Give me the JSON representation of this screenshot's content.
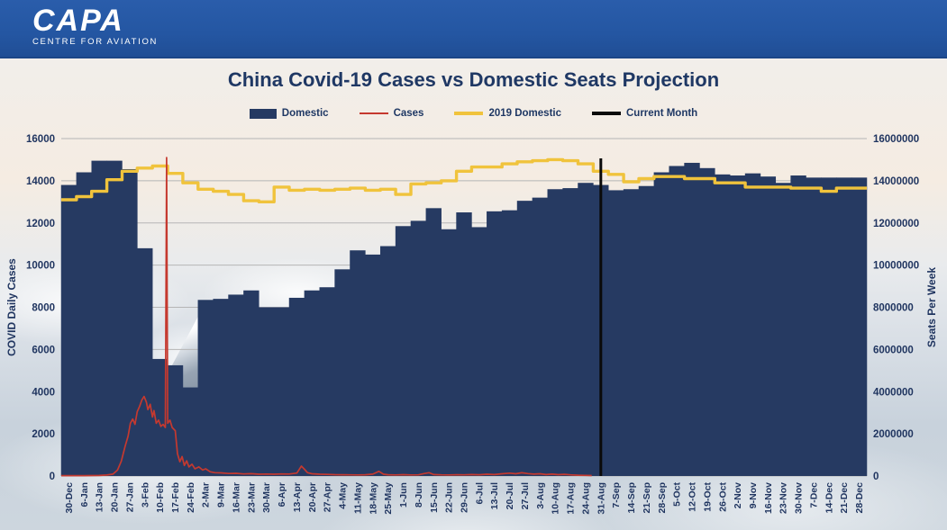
{
  "banner": {
    "logo_title": "CAPA",
    "logo_subtitle": "CENTRE FOR AVIATION"
  },
  "title": "China Covid-19 Cases vs Domestic Seats Projection",
  "legend": {
    "items": [
      {
        "label": "Domestic",
        "swatch": "bar",
        "color": "#263a62"
      },
      {
        "label": "Cases",
        "swatch": "thin-line",
        "color": "#c5392f"
      },
      {
        "label": "2019 Domestic",
        "swatch": "thick-line",
        "color": "#f0c33c"
      },
      {
        "label": "Current Month",
        "swatch": "thick-line",
        "color": "#0a0a0a"
      }
    ]
  },
  "axes": {
    "left": {
      "title": "COVID Daily Cases",
      "ticks": [
        "0",
        "2000",
        "4000",
        "6000",
        "8000",
        "10000",
        "12000",
        "14000",
        "16000"
      ]
    },
    "right": {
      "title": "Seats Per Week",
      "ticks": [
        "0",
        "2000000",
        "4000000",
        "6000000",
        "8000000",
        "10000000",
        "12000000",
        "14000000",
        "16000000"
      ]
    }
  },
  "colors": {
    "banner_blue": "#2456a2",
    "title_navy": "#1f3864",
    "gridline": "#b5b5b5"
  },
  "chart_data": {
    "type": "bar",
    "title": "China Covid-19 Cases vs Domestic Seats Projection",
    "left_axis": {
      "label": "COVID Daily Cases",
      "range": [
        0,
        16000
      ],
      "tick_step": 2000,
      "grid": true
    },
    "right_axis": {
      "label": "Seats Per Week",
      "range": [
        0,
        16000000
      ],
      "tick_step": 2000000
    },
    "x_labels": [
      "30-Dec",
      "6-Jan",
      "13-Jan",
      "20-Jan",
      "27-Jan",
      "3-Feb",
      "10-Feb",
      "17-Feb",
      "24-Feb",
      "2-Mar",
      "9-Mar",
      "16-Mar",
      "23-Mar",
      "30-Mar",
      "6-Apr",
      "13-Apr",
      "20-Apr",
      "27-Apr",
      "4-May",
      "11-May",
      "18-May",
      "25-May",
      "1-Jun",
      "8-Jun",
      "15-Jun",
      "22-Jun",
      "29-Jun",
      "6-Jul",
      "13-Jul",
      "20-Jul",
      "27-Jul",
      "3-Aug",
      "10-Aug",
      "17-Aug",
      "24-Aug",
      "31-Aug",
      "7-Sep",
      "14-Sep",
      "21-Sep",
      "28-Sep",
      "5-Oct",
      "12-Oct",
      "19-Oct",
      "26-Oct",
      "2-Nov",
      "9-Nov",
      "16-Nov",
      "23-Nov",
      "30-Nov",
      "7-Dec",
      "14-Dec",
      "21-Dec",
      "28-Dec"
    ],
    "series": [
      {
        "name": "Domestic",
        "type": "bar",
        "axis": "right",
        "color": "#263a62",
        "values": [
          13800000,
          14400000,
          14950000,
          14950000,
          14550000,
          10800000,
          5550000,
          5250000,
          4200000,
          8350000,
          8400000,
          8600000,
          8800000,
          8000000,
          8000000,
          8450000,
          8800000,
          8950000,
          9800000,
          10700000,
          10500000,
          10900000,
          11850000,
          12100000,
          12700000,
          11700000,
          12500000,
          11800000,
          12550000,
          12600000,
          13050000,
          13200000,
          13600000,
          13650000,
          13900000,
          13800000,
          13550000,
          13600000,
          13750000,
          14400000,
          14700000,
          14850000,
          14600000,
          14300000,
          14250000,
          14350000,
          14200000,
          13900000,
          14250000,
          14150000,
          14150000,
          14150000,
          14150000
        ]
      },
      {
        "name": "Cases",
        "type": "line",
        "axis": "left",
        "color": "#c5392f",
        "points": [
          [
            -0.5,
            15
          ],
          [
            0,
            15
          ],
          [
            1,
            18
          ],
          [
            2,
            25
          ],
          [
            2.5,
            45
          ],
          [
            2.9,
            90
          ],
          [
            3.2,
            280
          ],
          [
            3.45,
            700
          ],
          [
            3.7,
            1400
          ],
          [
            3.9,
            1900
          ],
          [
            4.05,
            2500
          ],
          [
            4.2,
            2700
          ],
          [
            4.35,
            2450
          ],
          [
            4.5,
            3050
          ],
          [
            4.65,
            3300
          ],
          [
            4.8,
            3600
          ],
          [
            4.95,
            3770
          ],
          [
            5.1,
            3500
          ],
          [
            5.2,
            3150
          ],
          [
            5.35,
            3400
          ],
          [
            5.5,
            2800
          ],
          [
            5.6,
            3100
          ],
          [
            5.75,
            2500
          ],
          [
            5.9,
            2650
          ],
          [
            6.05,
            2350
          ],
          [
            6.2,
            2450
          ],
          [
            6.35,
            2300
          ],
          [
            6.43,
            15100
          ],
          [
            6.5,
            2500
          ],
          [
            6.65,
            2650
          ],
          [
            6.8,
            2300
          ],
          [
            7.0,
            2150
          ],
          [
            7.15,
            1050
          ],
          [
            7.3,
            680
          ],
          [
            7.45,
            920
          ],
          [
            7.6,
            500
          ],
          [
            7.75,
            720
          ],
          [
            7.9,
            430
          ],
          [
            8.1,
            560
          ],
          [
            8.3,
            340
          ],
          [
            8.55,
            430
          ],
          [
            8.8,
            280
          ],
          [
            9.0,
            340
          ],
          [
            9.3,
            200
          ],
          [
            9.6,
            160
          ],
          [
            10,
            150
          ],
          [
            10.5,
            120
          ],
          [
            11,
            130
          ],
          [
            11.5,
            100
          ],
          [
            12,
            110
          ],
          [
            12.5,
            85
          ],
          [
            13,
            95
          ],
          [
            13.5,
            85
          ],
          [
            14,
            100
          ],
          [
            14.5,
            95
          ],
          [
            15,
            140
          ],
          [
            15.3,
            470
          ],
          [
            15.5,
            320
          ],
          [
            15.7,
            160
          ],
          [
            16,
            105
          ],
          [
            16.5,
            85
          ],
          [
            17,
            75
          ],
          [
            17.5,
            65
          ],
          [
            18,
            60
          ],
          [
            18.5,
            55
          ],
          [
            19,
            50
          ],
          [
            19.5,
            60
          ],
          [
            20,
            90
          ],
          [
            20.4,
            220
          ],
          [
            20.7,
            85
          ],
          [
            21,
            60
          ],
          [
            21.5,
            50
          ],
          [
            22,
            65
          ],
          [
            22.5,
            50
          ],
          [
            23,
            55
          ],
          [
            23.4,
            120
          ],
          [
            23.7,
            160
          ],
          [
            24,
            70
          ],
          [
            24.5,
            55
          ],
          [
            25,
            50
          ],
          [
            25.5,
            60
          ],
          [
            26,
            55
          ],
          [
            26.5,
            70
          ],
          [
            27,
            60
          ],
          [
            27.5,
            85
          ],
          [
            28,
            70
          ],
          [
            28.5,
            105
          ],
          [
            29,
            135
          ],
          [
            29.4,
            105
          ],
          [
            29.8,
            155
          ],
          [
            30.2,
            115
          ],
          [
            30.6,
            90
          ],
          [
            31,
            105
          ],
          [
            31.4,
            70
          ],
          [
            31.8,
            90
          ],
          [
            32.2,
            65
          ],
          [
            32.6,
            80
          ],
          [
            33,
            55
          ],
          [
            33.5,
            40
          ],
          [
            34,
            30
          ],
          [
            34.4,
            20
          ]
        ]
      },
      {
        "name": "2019 Domestic",
        "type": "step-line",
        "axis": "right",
        "color": "#f0c33c",
        "values": [
          13100000,
          13250000,
          13500000,
          14050000,
          14450000,
          14600000,
          14700000,
          14350000,
          13900000,
          13600000,
          13500000,
          13350000,
          13050000,
          13000000,
          13700000,
          13550000,
          13600000,
          13550000,
          13600000,
          13650000,
          13550000,
          13600000,
          13350000,
          13850000,
          13900000,
          14000000,
          14450000,
          14650000,
          14650000,
          14800000,
          14900000,
          14950000,
          15000000,
          14950000,
          14800000,
          14450000,
          14300000,
          13950000,
          14100000,
          14200000,
          14200000,
          14100000,
          14100000,
          13900000,
          13900000,
          13700000,
          13700000,
          13700000,
          13650000,
          13650000,
          13500000,
          13650000,
          13650000
        ]
      },
      {
        "name": "Current Month",
        "type": "vline",
        "x_label": "31-Aug",
        "color": "#0a0a0a"
      }
    ]
  }
}
